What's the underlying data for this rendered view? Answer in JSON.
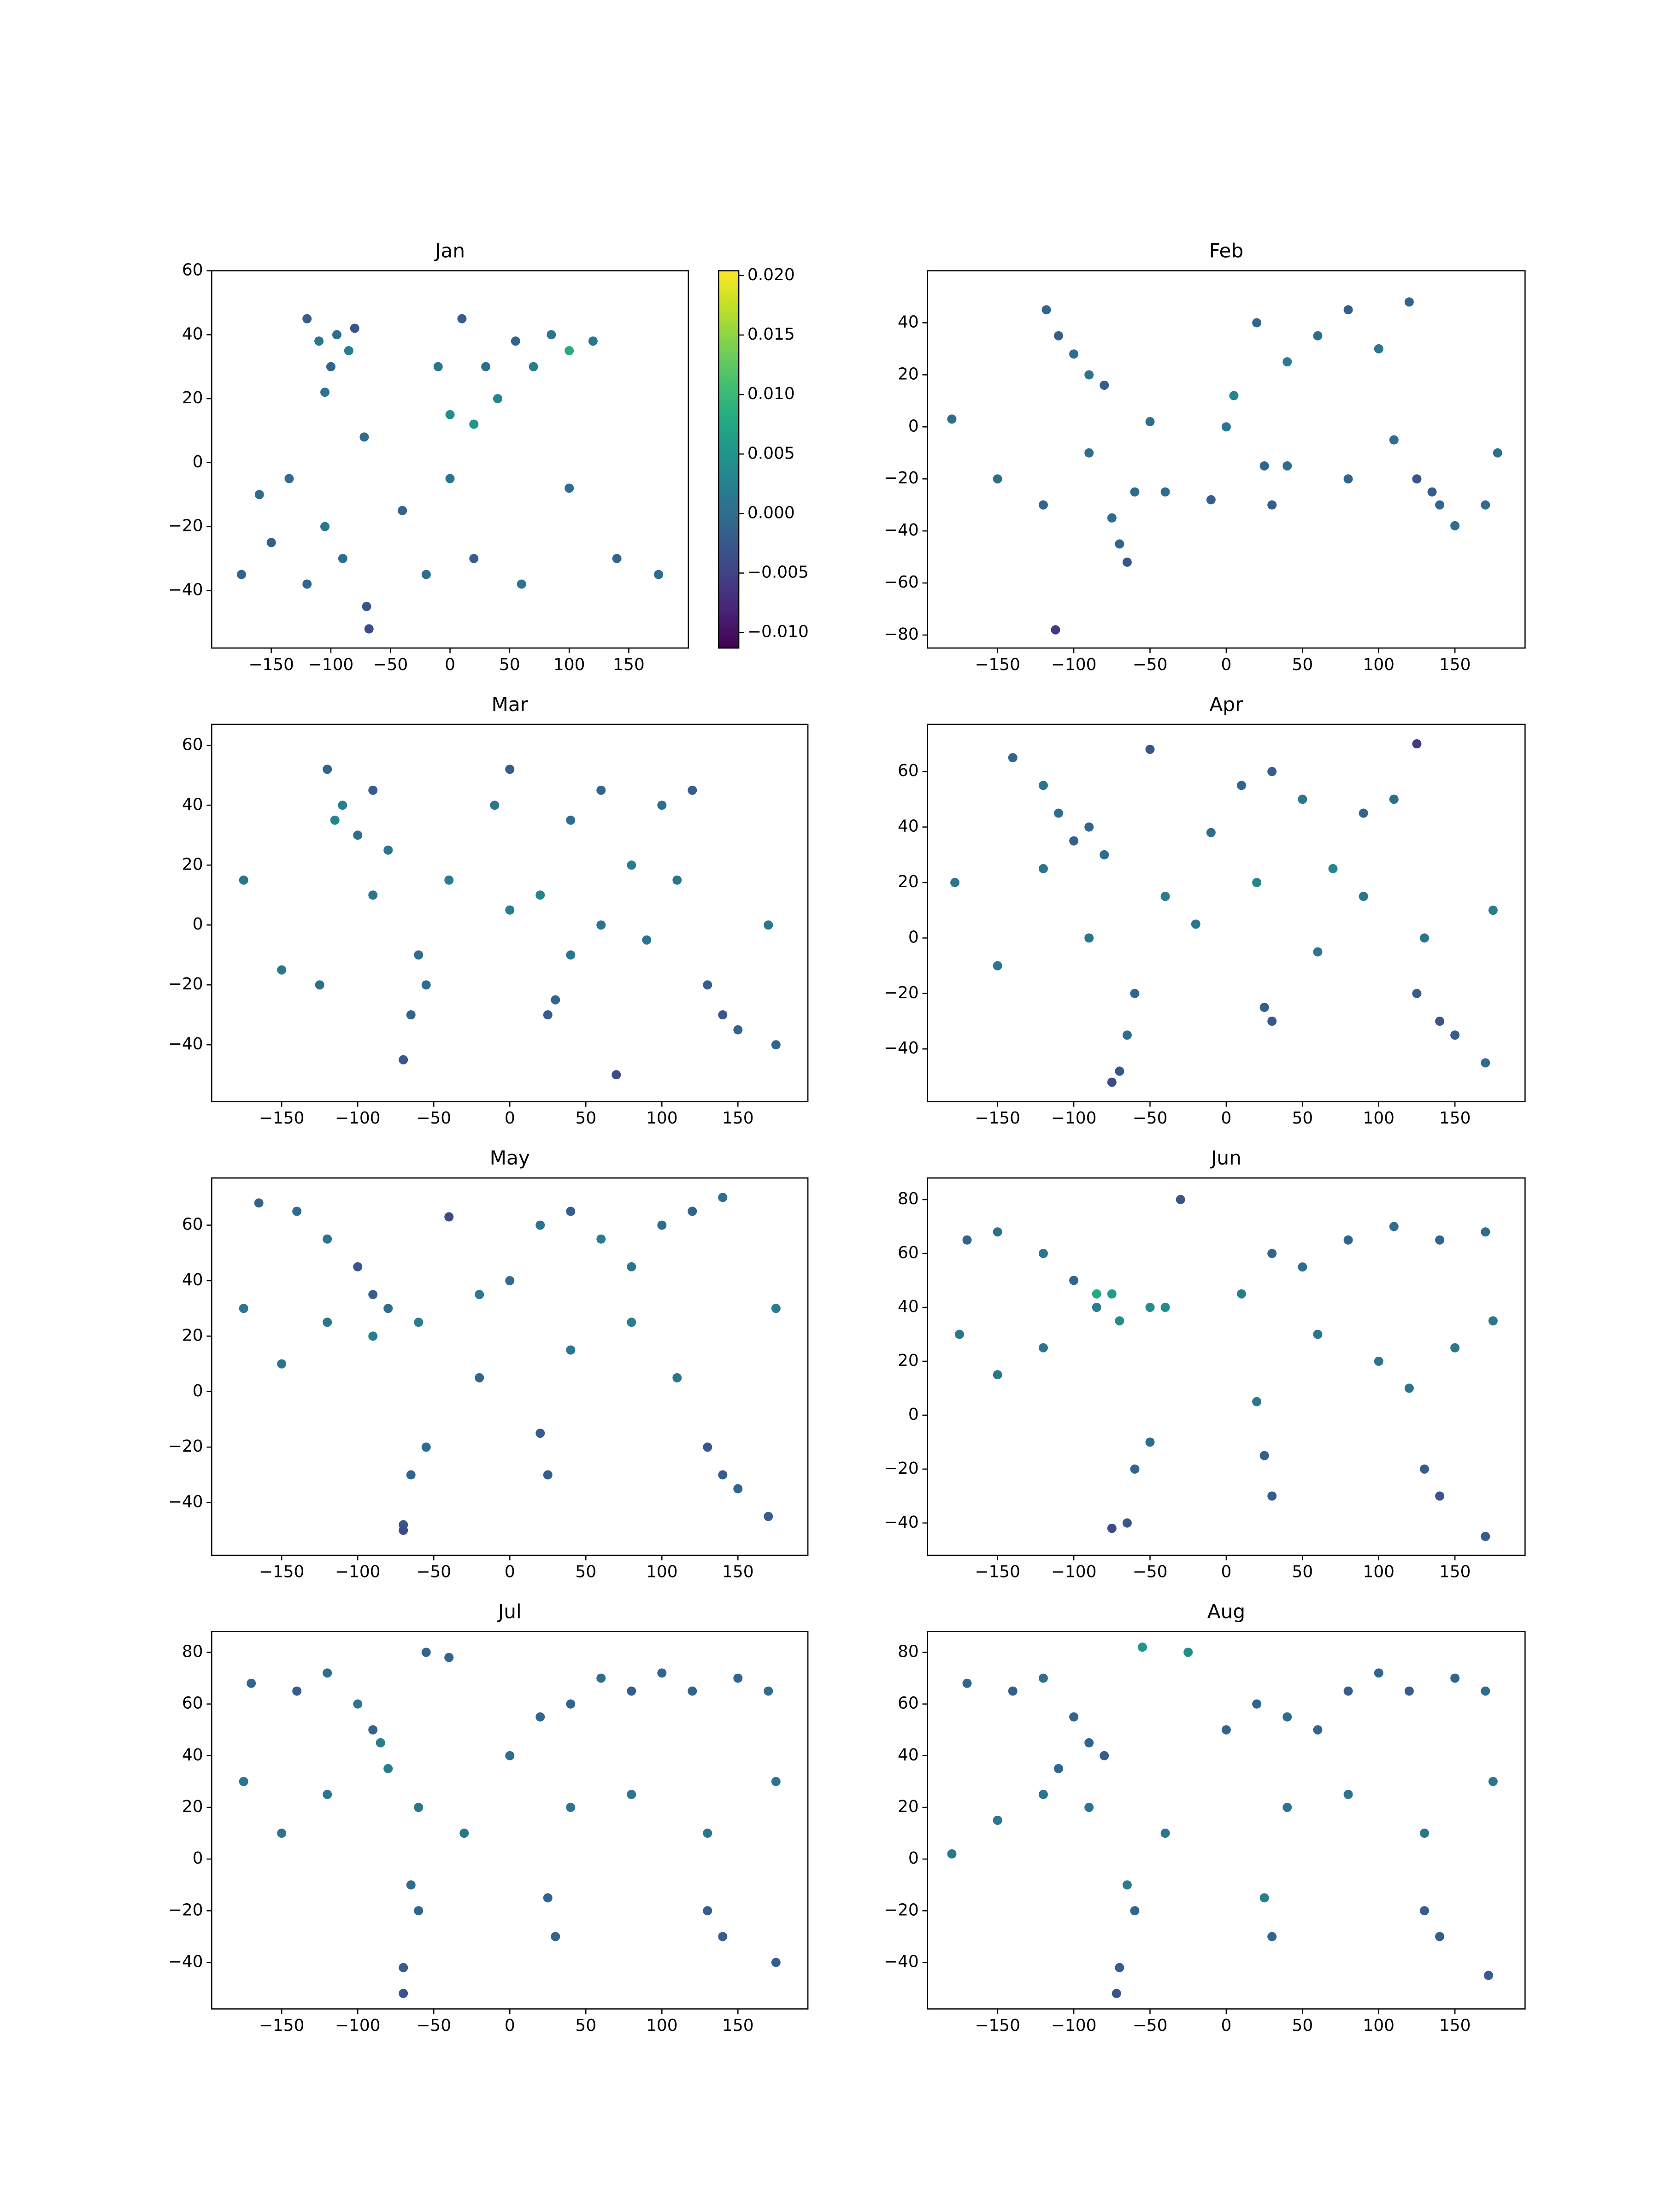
{
  "chart_data": [
    {
      "type": "scatter",
      "title": "Jan",
      "colormap": "viridis",
      "x": [
        -120,
        -110,
        -100,
        -95,
        -85,
        -80,
        -105,
        -72,
        -10,
        0,
        20,
        40,
        70,
        100,
        120,
        10,
        55,
        85,
        -175,
        -160,
        -150,
        -135,
        -120,
        -105,
        -90,
        -70,
        -40,
        -20,
        0,
        20,
        60,
        100,
        140,
        175,
        -68,
        30
      ],
      "y": [
        45,
        38,
        30,
        40,
        35,
        42,
        22,
        8,
        30,
        15,
        12,
        20,
        30,
        35,
        38,
        45,
        38,
        40,
        -35,
        -10,
        -25,
        -5,
        -38,
        -20,
        -30,
        -45,
        -15,
        -35,
        -5,
        -30,
        -38,
        -8,
        -30,
        -35,
        -52,
        30
      ],
      "c": [
        -0.002,
        0.001,
        -0.001,
        0,
        0.002,
        -0.003,
        0.001,
        0,
        0.001,
        0.004,
        0.005,
        0.003,
        0.002,
        0.008,
        0.001,
        -0.002,
        -0.001,
        0.001,
        -0.001,
        0,
        -0.002,
        0,
        -0.001,
        0.001,
        0,
        -0.003,
        -0.001,
        0,
        0.001,
        -0.002,
        0.001,
        0,
        -0.001,
        0,
        -0.004,
        0
      ],
      "xlim": [
        -200,
        200
      ],
      "ylim": [
        -58,
        60
      ],
      "xticks": [
        {
          "value": -150,
          "label": "−150"
        },
        {
          "value": -100,
          "label": "−100"
        },
        {
          "value": -50,
          "label": "−50"
        },
        0,
        50,
        100,
        150
      ],
      "yticks": [
        {
          "value": -40,
          "label": "−40"
        },
        {
          "value": -20,
          "label": "−20"
        },
        0,
        20,
        40,
        60
      ],
      "clim": [
        -0.0113,
        0.0204
      ],
      "cticks": [
        {
          "value": -0.01,
          "label": "−0.010"
        },
        {
          "value": -0.005,
          "label": "−0.005"
        },
        {
          "value": 0,
          "label": "0.000"
        },
        {
          "value": 0.005,
          "label": "0.005"
        },
        {
          "value": 0.01,
          "label": "0.010"
        },
        {
          "value": 0.015,
          "label": "0.015"
        },
        {
          "value": 0.02,
          "label": "0.020"
        }
      ]
    },
    {
      "type": "scatter",
      "title": "Feb",
      "colormap": "viridis",
      "x": [
        -118,
        -110,
        -100,
        -90,
        -80,
        -75,
        -70,
        -65,
        -60,
        5,
        20,
        40,
        60,
        80,
        100,
        120,
        135,
        -180,
        -150,
        -120,
        -90,
        -40,
        0,
        40,
        80,
        110,
        170,
        -10,
        25,
        30,
        125,
        140,
        150,
        -112,
        178,
        -50
      ],
      "y": [
        45,
        35,
        28,
        20,
        16,
        -35,
        -45,
        -52,
        -25,
        12,
        40,
        25,
        35,
        45,
        30,
        48,
        -25,
        3,
        -20,
        -30,
        -10,
        -25,
        0,
        -15,
        -20,
        -5,
        -30,
        -28,
        -15,
        -30,
        -20,
        -30,
        -38,
        -78,
        -10,
        2
      ],
      "c": [
        -0.001,
        -0.002,
        0,
        0.001,
        -0.002,
        0,
        -0.001,
        -0.003,
        0,
        0.003,
        -0.001,
        0.002,
        0,
        -0.002,
        0.001,
        -0.001,
        -0.002,
        0,
        0,
        -0.001,
        0,
        0,
        0.001,
        0,
        -0.001,
        0,
        0,
        -0.002,
        -0.001,
        -0.002,
        -0.003,
        -0.001,
        0,
        -0.006,
        0,
        0
      ],
      "xlim": [
        -196,
        196
      ],
      "ylim": [
        -85,
        60
      ],
      "xticks": [
        {
          "value": -150,
          "label": "−150"
        },
        {
          "value": -100,
          "label": "−100"
        },
        {
          "value": -50,
          "label": "−50"
        },
        0,
        50,
        100,
        150
      ],
      "yticks": [
        {
          "value": -80,
          "label": "−80"
        },
        {
          "value": -60,
          "label": "−60"
        },
        {
          "value": -40,
          "label": "−40"
        },
        {
          "value": -20,
          "label": "−20"
        },
        0,
        20,
        40
      ]
    },
    {
      "type": "scatter",
      "title": "Mar",
      "colormap": "viridis",
      "x": [
        -120,
        -110,
        -100,
        -90,
        -80,
        -70,
        -65,
        -60,
        -55,
        -10,
        0,
        20,
        40,
        60,
        80,
        100,
        120,
        30,
        25,
        130,
        140,
        150,
        -175,
        -150,
        -125,
        -90,
        -40,
        0,
        40,
        60,
        90,
        110,
        170,
        70,
        175,
        -115
      ],
      "y": [
        52,
        40,
        30,
        45,
        25,
        -45,
        -30,
        -10,
        -20,
        40,
        52,
        10,
        35,
        45,
        20,
        40,
        45,
        -25,
        -30,
        -20,
        -30,
        -35,
        15,
        -15,
        -20,
        10,
        15,
        5,
        -10,
        0,
        -5,
        15,
        0,
        -50,
        -40,
        35
      ],
      "c": [
        -0.001,
        0.002,
        0,
        -0.002,
        0.001,
        -0.003,
        -0.001,
        0,
        0,
        0.001,
        -0.002,
        0.003,
        0,
        -0.001,
        0.002,
        0,
        -0.002,
        -0.001,
        -0.002,
        -0.002,
        -0.003,
        -0.001,
        0.001,
        0.001,
        0,
        0.001,
        0.002,
        0.002,
        0.001,
        0.001,
        0.001,
        0.001,
        0.001,
        -0.004,
        -0.001,
        0.003
      ],
      "xlim": [
        -196,
        196
      ],
      "ylim": [
        -59,
        67
      ],
      "xticks": [
        {
          "value": -150,
          "label": "−150"
        },
        {
          "value": -100,
          "label": "−100"
        },
        {
          "value": -50,
          "label": "−50"
        },
        0,
        50,
        100,
        150
      ],
      "yticks": [
        {
          "value": -40,
          "label": "−40"
        },
        {
          "value": -20,
          "label": "−20"
        },
        0,
        20,
        40,
        60
      ]
    },
    {
      "type": "scatter",
      "title": "Apr",
      "colormap": "viridis",
      "x": [
        -140,
        -120,
        -110,
        -100,
        -90,
        -80,
        -70,
        -60,
        -65,
        -10,
        10,
        30,
        50,
        70,
        90,
        110,
        125,
        25,
        30,
        125,
        140,
        150,
        -178,
        -150,
        -120,
        -90,
        -40,
        -20,
        20,
        60,
        90,
        130,
        175,
        -75,
        170,
        -50
      ],
      "y": [
        65,
        55,
        45,
        35,
        40,
        30,
        -48,
        -20,
        -35,
        38,
        55,
        60,
        50,
        25,
        45,
        50,
        70,
        -25,
        -30,
        -20,
        -30,
        -35,
        20,
        -10,
        25,
        0,
        15,
        5,
        20,
        -5,
        15,
        0,
        10,
        -52,
        -45,
        68
      ],
      "c": [
        -0.001,
        0.001,
        0,
        -0.002,
        -0.001,
        0,
        -0.003,
        -0.001,
        0,
        0,
        -0.001,
        -0.002,
        0.001,
        0.003,
        -0.001,
        0,
        -0.006,
        -0.002,
        -0.003,
        -0.002,
        -0.003,
        -0.002,
        0.001,
        0.001,
        0.001,
        0.001,
        0.002,
        0.001,
        0.003,
        0.001,
        0.001,
        0.001,
        0.002,
        -0.004,
        0,
        -0.003
      ],
      "xlim": [
        -196,
        196
      ],
      "ylim": [
        -59,
        77
      ],
      "xticks": [
        {
          "value": -150,
          "label": "−150"
        },
        {
          "value": -100,
          "label": "−100"
        },
        {
          "value": -50,
          "label": "−50"
        },
        0,
        50,
        100,
        150
      ],
      "yticks": [
        {
          "value": -40,
          "label": "−40"
        },
        {
          "value": -20,
          "label": "−20"
        },
        0,
        20,
        40,
        60
      ]
    },
    {
      "type": "scatter",
      "title": "May",
      "colormap": "viridis",
      "x": [
        -165,
        -140,
        -120,
        -100,
        -90,
        -80,
        -70,
        -65,
        -55,
        -20,
        0,
        20,
        40,
        60,
        80,
        100,
        120,
        140,
        20,
        25,
        130,
        140,
        150,
        -175,
        -150,
        -120,
        -90,
        -60,
        -20,
        40,
        80,
        110,
        175,
        -70,
        170,
        -40
      ],
      "y": [
        68,
        65,
        55,
        45,
        35,
        30,
        -48,
        -30,
        -20,
        5,
        40,
        60,
        65,
        55,
        45,
        60,
        65,
        70,
        -15,
        -30,
        -20,
        -30,
        -35,
        30,
        10,
        25,
        20,
        25,
        35,
        15,
        25,
        5,
        30,
        -50,
        -45,
        63
      ],
      "c": [
        -0.001,
        0,
        0.001,
        -0.003,
        -0.002,
        0,
        -0.003,
        -0.001,
        0,
        -0.001,
        0,
        0.001,
        -0.002,
        0.002,
        0.001,
        0,
        -0.001,
        0,
        -0.002,
        -0.002,
        -0.003,
        -0.002,
        -0.001,
        0.001,
        0.001,
        0.001,
        0.002,
        0.002,
        0.002,
        0.001,
        0.002,
        0.001,
        0.002,
        -0.004,
        -0.002,
        -0.004
      ],
      "xlim": [
        -196,
        196
      ],
      "ylim": [
        -59,
        77
      ],
      "xticks": [
        {
          "value": -150,
          "label": "−150"
        },
        {
          "value": -100,
          "label": "−100"
        },
        {
          "value": -50,
          "label": "−50"
        },
        0,
        50,
        100,
        150
      ],
      "yticks": [
        {
          "value": -40,
          "label": "−40"
        },
        {
          "value": -20,
          "label": "−20"
        },
        0,
        20,
        40,
        60
      ]
    },
    {
      "type": "scatter",
      "title": "Jun",
      "colormap": "viridis",
      "x": [
        -170,
        -150,
        -120,
        -100,
        -85,
        -75,
        -65,
        -60,
        -50,
        -30,
        10,
        30,
        50,
        80,
        110,
        140,
        170,
        25,
        30,
        130,
        140,
        -175,
        -150,
        -120,
        -70,
        -50,
        60,
        100,
        150,
        175,
        -75,
        -85,
        -40,
        170,
        20,
        120
      ],
      "y": [
        65,
        68,
        60,
        50,
        40,
        45,
        -40,
        -20,
        -10,
        80,
        45,
        60,
        55,
        65,
        70,
        65,
        68,
        -15,
        -30,
        -20,
        -30,
        30,
        15,
        25,
        35,
        40,
        30,
        20,
        25,
        35,
        -42,
        45,
        40,
        -45,
        5,
        10
      ],
      "c": [
        -0.001,
        0,
        0.001,
        -0.001,
        0.002,
        0.006,
        -0.003,
        -0.001,
        0,
        -0.003,
        0.002,
        -0.001,
        0,
        -0.001,
        0,
        -0.001,
        0,
        -0.002,
        -0.002,
        -0.002,
        -0.003,
        0.001,
        0.001,
        0.001,
        0.004,
        0.004,
        0.001,
        0.001,
        0.001,
        0.001,
        -0.004,
        0.008,
        0.004,
        -0.002,
        0.001,
        0.001
      ],
      "xlim": [
        -196,
        196
      ],
      "ylim": [
        -52,
        88
      ],
      "xticks": [
        {
          "value": -150,
          "label": "−150"
        },
        {
          "value": -100,
          "label": "−100"
        },
        {
          "value": -50,
          "label": "−50"
        },
        0,
        50,
        100,
        150
      ],
      "yticks": [
        {
          "value": -40,
          "label": "−40"
        },
        {
          "value": -20,
          "label": "−20"
        },
        0,
        20,
        40,
        60,
        80
      ]
    },
    {
      "type": "scatter",
      "title": "Jul",
      "colormap": "viridis",
      "x": [
        -170,
        -140,
        -120,
        -100,
        -90,
        -80,
        -70,
        -60,
        -65,
        -40,
        0,
        20,
        40,
        60,
        80,
        100,
        120,
        150,
        170,
        25,
        30,
        130,
        140,
        -175,
        -150,
        -120,
        -60,
        -30,
        40,
        80,
        130,
        175,
        -70,
        175,
        -55,
        -85
      ],
      "y": [
        68,
        65,
        72,
        60,
        50,
        35,
        -42,
        -20,
        -10,
        78,
        40,
        55,
        60,
        70,
        65,
        72,
        65,
        70,
        65,
        -15,
        -30,
        -20,
        -30,
        30,
        10,
        25,
        20,
        10,
        20,
        25,
        10,
        30,
        -52,
        -40,
        80,
        45
      ],
      "c": [
        -0.001,
        -0.002,
        0,
        0.001,
        -0.001,
        0.002,
        -0.002,
        -0.001,
        0,
        -0.001,
        0,
        -0.001,
        -0.001,
        0,
        -0.002,
        -0.001,
        -0.001,
        -0.001,
        0,
        -0.001,
        -0.001,
        -0.002,
        -0.002,
        0.001,
        0.001,
        0.001,
        0.001,
        0.001,
        0.001,
        0.001,
        0.001,
        0.001,
        -0.003,
        -0.002,
        -0.001,
        0.002
      ],
      "xlim": [
        -196,
        196
      ],
      "ylim": [
        -58,
        88
      ],
      "xticks": [
        {
          "value": -150,
          "label": "−150"
        },
        {
          "value": -100,
          "label": "−100"
        },
        {
          "value": -50,
          "label": "−50"
        },
        0,
        50,
        100,
        150
      ],
      "yticks": [
        {
          "value": -40,
          "label": "−40"
        },
        {
          "value": -20,
          "label": "−20"
        },
        0,
        20,
        40,
        60,
        80
      ]
    },
    {
      "type": "scatter",
      "title": "Aug",
      "colormap": "viridis",
      "x": [
        -170,
        -140,
        -120,
        -100,
        -90,
        -80,
        -70,
        -60,
        -65,
        -55,
        0,
        20,
        40,
        60,
        80,
        100,
        120,
        150,
        170,
        25,
        30,
        130,
        140,
        -180,
        -150,
        -120,
        -90,
        -40,
        40,
        80,
        130,
        175,
        -72,
        172,
        -25,
        -110
      ],
      "y": [
        68,
        65,
        70,
        55,
        45,
        40,
        -42,
        -20,
        -10,
        82,
        50,
        60,
        55,
        50,
        65,
        72,
        65,
        70,
        65,
        -15,
        -30,
        -20,
        -30,
        2,
        15,
        25,
        20,
        10,
        20,
        25,
        10,
        30,
        -52,
        -45,
        80,
        35
      ],
      "c": [
        -0.001,
        -0.002,
        0,
        -0.001,
        -0.001,
        -0.002,
        -0.002,
        -0.001,
        0.002,
        0.005,
        -0.001,
        -0.001,
        0,
        -0.001,
        -0.002,
        -0.001,
        -0.002,
        -0.001,
        0,
        0.002,
        -0.001,
        -0.002,
        -0.002,
        0.001,
        0.001,
        0.001,
        0.001,
        0.001,
        0.001,
        0.001,
        0.001,
        0.001,
        -0.003,
        -0.002,
        0.004,
        -0.001
      ],
      "xlim": [
        -196,
        196
      ],
      "ylim": [
        -58,
        88
      ],
      "xticks": [
        {
          "value": -150,
          "label": "−150"
        },
        {
          "value": -100,
          "label": "−100"
        },
        {
          "value": -50,
          "label": "−50"
        },
        0,
        50,
        100,
        150
      ],
      "yticks": [
        {
          "value": -40,
          "label": "−40"
        },
        {
          "value": -20,
          "label": "−20"
        },
        0,
        20,
        40,
        60,
        80
      ]
    }
  ]
}
